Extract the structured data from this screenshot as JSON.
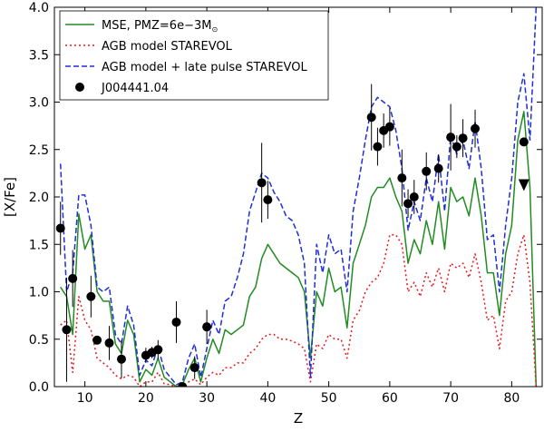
{
  "chart_data": {
    "type": "line",
    "title": "",
    "xlabel": "Z",
    "ylabel": "[X/Fe]",
    "xlim": [
      5,
      85
    ],
    "ylim": [
      0.0,
      4.0
    ],
    "xticks": [
      10,
      20,
      30,
      40,
      50,
      60,
      70,
      80
    ],
    "yticks": [
      "0.0",
      "0.5",
      "1.0",
      "1.5",
      "2.0",
      "2.5",
      "3.0",
      "3.5",
      "4.0"
    ],
    "grid": false,
    "legend_position": "top-left",
    "legend": [
      {
        "label": "MSE, PMZ=6e−3M",
        "sub": "⊙",
        "style": "line",
        "color": "#228b22",
        "dash": ""
      },
      {
        "label": "AGB model STAREVOL",
        "style": "line",
        "color": "#e31a1c",
        "dash": "2,3"
      },
      {
        "label": "AGB model + late pulse STAREVOL",
        "style": "line",
        "color": "#1f2fd6",
        "dash": "6,3"
      },
      {
        "label": "J004441.04",
        "style": "marker",
        "color": "#000000"
      }
    ],
    "series": [
      {
        "name": "MSE, PMZ=6e−3M⊙",
        "color": "#228b22",
        "x": [
          6,
          7,
          8,
          9,
          10,
          11,
          12,
          13,
          14,
          15,
          16,
          17,
          18,
          19,
          20,
          21,
          22,
          23,
          24,
          25,
          26,
          27,
          28,
          29,
          30,
          31,
          32,
          33,
          34,
          35,
          36,
          37,
          38,
          39,
          40,
          41,
          42,
          43,
          44,
          45,
          46,
          47,
          48,
          49,
          50,
          51,
          52,
          53,
          54,
          55,
          56,
          57,
          58,
          59,
          60,
          61,
          62,
          63,
          64,
          65,
          66,
          67,
          68,
          69,
          70,
          71,
          72,
          73,
          74,
          75,
          76,
          77,
          78,
          79,
          80,
          81,
          82,
          83,
          84
        ],
        "y": [
          1.05,
          0.95,
          0.55,
          1.82,
          1.45,
          1.6,
          1.0,
          0.9,
          0.9,
          0.45,
          0.35,
          0.7,
          0.55,
          0.05,
          0.18,
          0.12,
          0.3,
          0.1,
          0.05,
          0.0,
          0.02,
          0.18,
          0.3,
          0.05,
          0.3,
          0.5,
          0.35,
          0.6,
          0.55,
          0.6,
          0.65,
          0.95,
          1.05,
          1.35,
          1.5,
          1.4,
          1.3,
          1.25,
          1.2,
          1.15,
          1.0,
          0.3,
          1.0,
          0.85,
          1.25,
          1.0,
          1.05,
          0.62,
          1.3,
          1.5,
          1.7,
          2.0,
          2.1,
          2.1,
          2.2,
          2.0,
          1.85,
          1.3,
          1.55,
          1.4,
          1.75,
          1.5,
          1.95,
          1.45,
          2.1,
          1.95,
          2.0,
          1.8,
          2.2,
          1.8,
          1.2,
          1.2,
          0.75,
          1.4,
          1.7,
          2.6,
          2.9,
          2.1,
          0.0
        ]
      },
      {
        "name": "AGB model STAREVOL",
        "color": "#e31a1c",
        "x": [
          6,
          7,
          8,
          9,
          10,
          11,
          12,
          13,
          14,
          15,
          16,
          17,
          18,
          19,
          20,
          21,
          22,
          23,
          24,
          25,
          26,
          27,
          28,
          29,
          30,
          31,
          32,
          33,
          34,
          35,
          36,
          37,
          38,
          39,
          40,
          41,
          42,
          43,
          44,
          45,
          46,
          47,
          48,
          49,
          50,
          51,
          52,
          53,
          54,
          55,
          56,
          57,
          58,
          59,
          60,
          61,
          62,
          63,
          64,
          65,
          66,
          67,
          68,
          69,
          70,
          71,
          72,
          73,
          74,
          75,
          76,
          77,
          78,
          79,
          80,
          81,
          82,
          83,
          84
        ],
        "y": [
          0.65,
          0.7,
          0.15,
          0.95,
          0.7,
          0.6,
          0.3,
          0.25,
          0.2,
          0.12,
          0.08,
          0.12,
          0.1,
          0.0,
          0.05,
          0.05,
          0.15,
          0.03,
          0.02,
          0.0,
          0.0,
          0.05,
          0.08,
          0.02,
          0.1,
          0.15,
          0.12,
          0.2,
          0.2,
          0.25,
          0.25,
          0.35,
          0.4,
          0.5,
          0.55,
          0.55,
          0.5,
          0.5,
          0.48,
          0.45,
          0.4,
          0.05,
          0.45,
          0.4,
          0.55,
          0.5,
          0.5,
          0.3,
          0.7,
          0.8,
          1.0,
          1.1,
          1.15,
          1.3,
          1.6,
          1.6,
          1.5,
          1.0,
          1.1,
          0.95,
          1.2,
          1.05,
          1.25,
          1.0,
          1.3,
          1.25,
          1.3,
          1.15,
          1.4,
          1.1,
          0.7,
          0.75,
          0.4,
          0.9,
          1.0,
          1.4,
          1.6,
          1.1,
          0.0
        ]
      },
      {
        "name": "AGB model + late pulse STAREVOL",
        "color": "#1f2fd6",
        "x": [
          6,
          7,
          8,
          9,
          10,
          11,
          12,
          13,
          14,
          15,
          16,
          17,
          18,
          19,
          20,
          21,
          22,
          23,
          24,
          25,
          26,
          27,
          28,
          29,
          30,
          31,
          32,
          33,
          34,
          35,
          36,
          37,
          38,
          39,
          40,
          41,
          42,
          43,
          44,
          45,
          46,
          47,
          48,
          49,
          50,
          51,
          52,
          53,
          54,
          55,
          56,
          57,
          58,
          59,
          60,
          61,
          62,
          63,
          64,
          65,
          66,
          67,
          68,
          69,
          70,
          71,
          72,
          73,
          74,
          75,
          76,
          77,
          78,
          79,
          80,
          81,
          82,
          83,
          84
        ],
        "y": [
          2.35,
          1.0,
          1.2,
          2.02,
          2.02,
          1.7,
          1.05,
          1.0,
          1.05,
          0.55,
          0.45,
          0.85,
          0.65,
          0.12,
          0.28,
          0.22,
          0.42,
          0.18,
          0.1,
          0.02,
          0.05,
          0.3,
          0.45,
          0.1,
          0.4,
          0.7,
          0.55,
          0.9,
          0.95,
          1.15,
          1.4,
          1.85,
          2.05,
          2.25,
          2.2,
          2.05,
          1.95,
          1.8,
          1.75,
          1.6,
          1.3,
          0.1,
          1.5,
          1.2,
          1.6,
          1.4,
          1.45,
          1.0,
          1.85,
          2.2,
          2.6,
          2.95,
          3.05,
          3.0,
          2.95,
          2.7,
          2.3,
          1.65,
          1.95,
          1.75,
          2.2,
          1.95,
          2.45,
          1.85,
          2.65,
          2.45,
          2.6,
          2.3,
          2.8,
          2.3,
          1.55,
          1.6,
          1.0,
          1.7,
          2.2,
          3.0,
          3.3,
          2.6,
          4.0
        ]
      }
    ],
    "observations": {
      "name": "J004441.04",
      "points": [
        {
          "x": 6,
          "y": 1.67,
          "err": 0.28
        },
        {
          "x": 7,
          "y": 0.6,
          "err": 0.55
        },
        {
          "x": 8,
          "y": 1.14,
          "err": 0.3
        },
        {
          "x": 11,
          "y": 0.95,
          "err": 0.22
        },
        {
          "x": 12,
          "y": 0.49,
          "err": 0.0
        },
        {
          "x": 14,
          "y": 0.46,
          "err": 0.18
        },
        {
          "x": 16,
          "y": 0.29,
          "err": 0.2
        },
        {
          "x": 20,
          "y": 0.33,
          "err": 0.08
        },
        {
          "x": 21,
          "y": 0.36,
          "err": 0.06
        },
        {
          "x": 22,
          "y": 0.39,
          "err": 0.1
        },
        {
          "x": 25,
          "y": 0.68,
          "err": 0.22
        },
        {
          "x": 26,
          "y": 0.0,
          "err": 0.0
        },
        {
          "x": 28,
          "y": 0.2,
          "err": 0.12
        },
        {
          "x": 30,
          "y": 0.63,
          "err": 0.18
        },
        {
          "x": 39,
          "y": 2.15,
          "err": 0.42
        },
        {
          "x": 40,
          "y": 1.97,
          "err": 0.2
        },
        {
          "x": 57,
          "y": 2.84,
          "err": 0.35
        },
        {
          "x": 58,
          "y": 2.53,
          "err": 0.2
        },
        {
          "x": 59,
          "y": 2.7,
          "err": 0.18
        },
        {
          "x": 60,
          "y": 2.74,
          "err": 0.2
        },
        {
          "x": 62,
          "y": 2.2,
          "err": 0.3
        },
        {
          "x": 63,
          "y": 1.93,
          "err": 0.15
        },
        {
          "x": 64,
          "y": 2.0,
          "err": 0.18
        },
        {
          "x": 66,
          "y": 2.27,
          "err": 0.2
        },
        {
          "x": 68,
          "y": 2.3,
          "err": 0.15
        },
        {
          "x": 70,
          "y": 2.63,
          "err": 0.35
        },
        {
          "x": 71,
          "y": 2.53,
          "err": 0.12
        },
        {
          "x": 72,
          "y": 2.62,
          "err": 0.2
        },
        {
          "x": 74,
          "y": 2.72,
          "err": 0.2
        },
        {
          "x": 82,
          "y": 2.58,
          "err": 0.0
        }
      ],
      "upper_limits": [
        {
          "x": 82,
          "y": 2.12
        }
      ]
    }
  }
}
